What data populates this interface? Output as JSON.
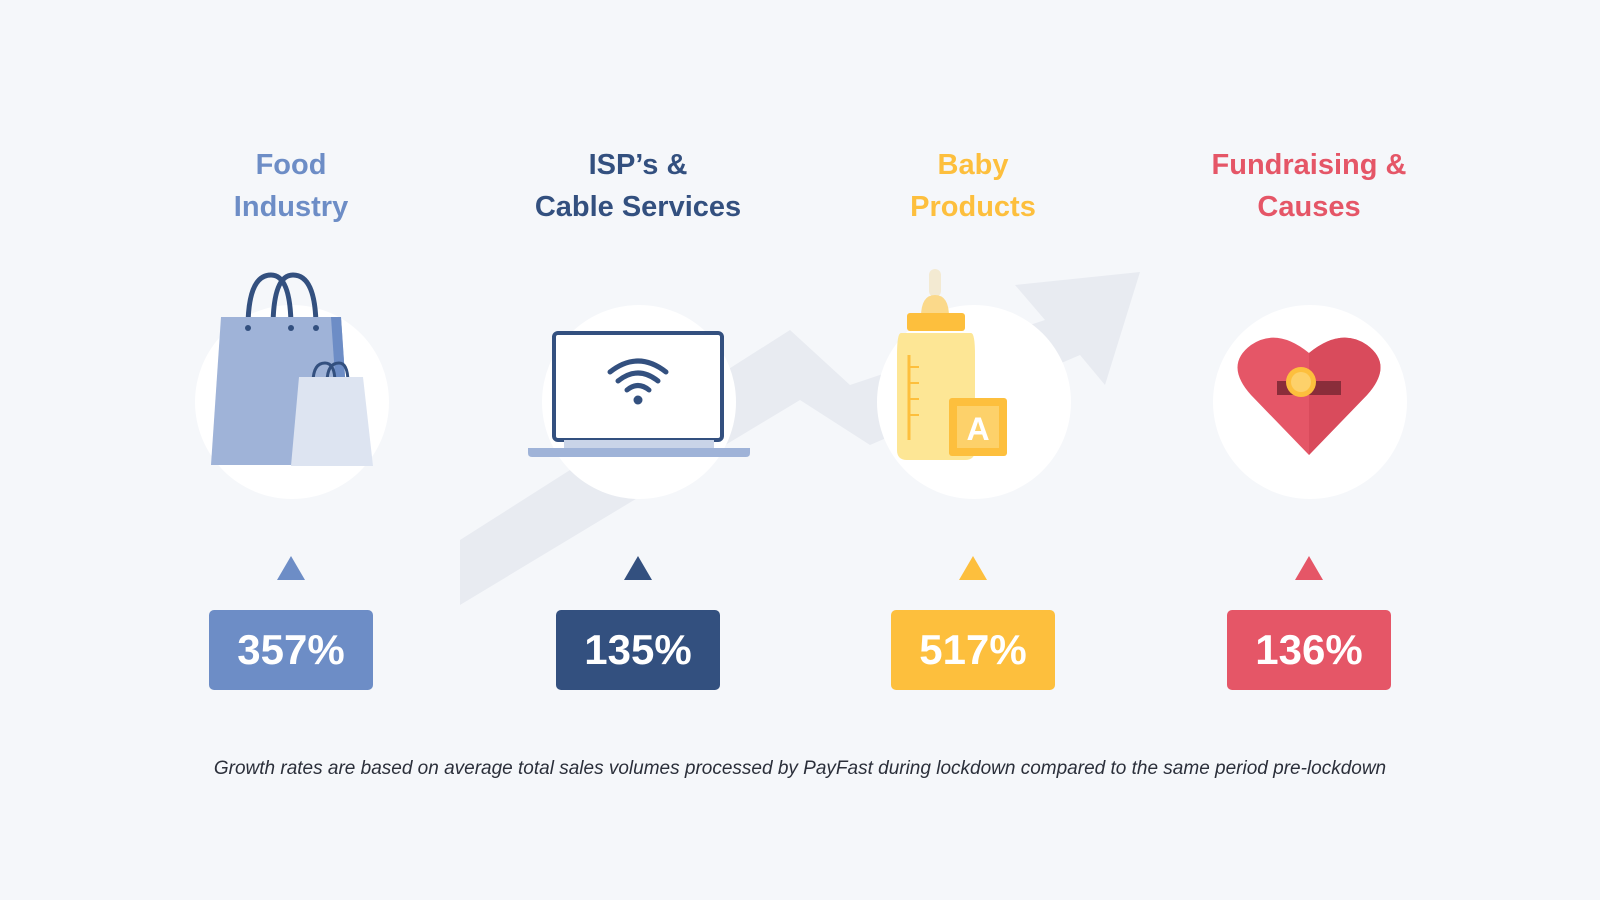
{
  "colors": {
    "background": "#f5f7fa",
    "food": "#6d8dc6",
    "isp": "#33507f",
    "baby": "#fdbf3d",
    "fundraising": "#e55667",
    "trend_arrow": "#e8ebf1"
  },
  "categories": [
    {
      "title": "Food\nIndustry",
      "value": "357%",
      "icon": "shopping-bags-icon"
    },
    {
      "title": "ISP’s &\nCable Services",
      "value": "135%",
      "icon": "laptop-wifi-icon"
    },
    {
      "title": "Baby\nProducts",
      "value": "517%",
      "icon": "baby-bottle-block-icon"
    },
    {
      "title": "Fundraising &\nCauses",
      "value": "136%",
      "icon": "heart-coin-icon"
    }
  ],
  "footnote": "Growth rates are based on average total sales volumes processed by PayFast during lockdown compared to the same period pre-lockdown"
}
